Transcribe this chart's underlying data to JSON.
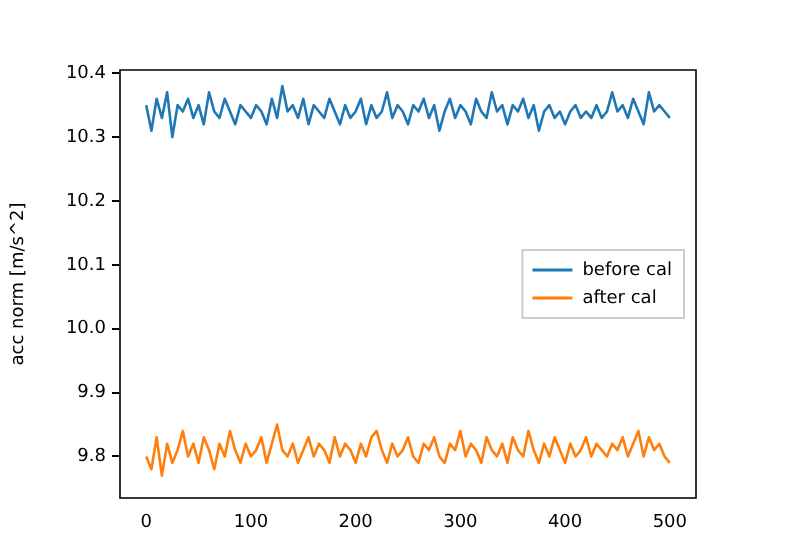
{
  "chart_data": {
    "type": "line",
    "ylabel": "acc norm [m/s^2]",
    "x": [
      0,
      5,
      10,
      15,
      20,
      25,
      30,
      35,
      40,
      45,
      50,
      55,
      60,
      65,
      70,
      75,
      80,
      85,
      90,
      95,
      100,
      105,
      110,
      115,
      120,
      125,
      130,
      135,
      140,
      145,
      150,
      155,
      160,
      165,
      170,
      175,
      180,
      185,
      190,
      195,
      200,
      205,
      210,
      215,
      220,
      225,
      230,
      235,
      240,
      245,
      250,
      255,
      260,
      265,
      270,
      275,
      280,
      285,
      290,
      295,
      300,
      305,
      310,
      315,
      320,
      325,
      330,
      335,
      340,
      345,
      350,
      355,
      360,
      365,
      370,
      375,
      380,
      385,
      390,
      395,
      400,
      405,
      410,
      415,
      420,
      425,
      430,
      435,
      440,
      445,
      450,
      455,
      460,
      465,
      470,
      475,
      480,
      485,
      490,
      495,
      500
    ],
    "series": [
      {
        "name": "before cal",
        "color": "#1f77b4",
        "values": [
          10.35,
          10.31,
          10.36,
          10.33,
          10.37,
          10.3,
          10.35,
          10.34,
          10.36,
          10.33,
          10.35,
          10.32,
          10.37,
          10.34,
          10.33,
          10.36,
          10.34,
          10.32,
          10.35,
          10.34,
          10.33,
          10.35,
          10.34,
          10.32,
          10.36,
          10.33,
          10.38,
          10.34,
          10.35,
          10.33,
          10.36,
          10.32,
          10.35,
          10.34,
          10.33,
          10.36,
          10.34,
          10.32,
          10.35,
          10.33,
          10.34,
          10.36,
          10.32,
          10.35,
          10.33,
          10.34,
          10.37,
          10.33,
          10.35,
          10.34,
          10.32,
          10.35,
          10.34,
          10.36,
          10.33,
          10.35,
          10.31,
          10.34,
          10.36,
          10.33,
          10.35,
          10.34,
          10.32,
          10.36,
          10.34,
          10.33,
          10.37,
          10.34,
          10.35,
          10.32,
          10.35,
          10.34,
          10.36,
          10.33,
          10.35,
          10.31,
          10.34,
          10.35,
          10.33,
          10.34,
          10.32,
          10.34,
          10.35,
          10.33,
          10.34,
          10.33,
          10.35,
          10.33,
          10.34,
          10.37,
          10.34,
          10.35,
          10.33,
          10.36,
          10.34,
          10.32,
          10.37,
          10.34,
          10.35,
          10.34,
          10.33
        ]
      },
      {
        "name": "after cal",
        "color": "#ff7f0e",
        "values": [
          9.8,
          9.78,
          9.83,
          9.77,
          9.82,
          9.79,
          9.81,
          9.84,
          9.8,
          9.82,
          9.79,
          9.83,
          9.81,
          9.78,
          9.82,
          9.8,
          9.84,
          9.81,
          9.79,
          9.82,
          9.8,
          9.81,
          9.83,
          9.79,
          9.82,
          9.85,
          9.81,
          9.8,
          9.82,
          9.79,
          9.81,
          9.83,
          9.8,
          9.82,
          9.81,
          9.79,
          9.83,
          9.8,
          9.82,
          9.81,
          9.79,
          9.82,
          9.8,
          9.83,
          9.84,
          9.81,
          9.79,
          9.82,
          9.8,
          9.81,
          9.83,
          9.8,
          9.79,
          9.82,
          9.81,
          9.83,
          9.8,
          9.79,
          9.82,
          9.81,
          9.84,
          9.8,
          9.82,
          9.81,
          9.79,
          9.83,
          9.81,
          9.8,
          9.82,
          9.79,
          9.83,
          9.81,
          9.8,
          9.84,
          9.81,
          9.79,
          9.82,
          9.8,
          9.83,
          9.81,
          9.79,
          9.82,
          9.8,
          9.81,
          9.83,
          9.8,
          9.82,
          9.81,
          9.8,
          9.82,
          9.81,
          9.83,
          9.8,
          9.82,
          9.84,
          9.8,
          9.83,
          9.81,
          9.82,
          9.8,
          9.79
        ]
      }
    ],
    "xlim": [
      -25,
      525
    ],
    "xticks": [
      0,
      100,
      200,
      300,
      400,
      500
    ],
    "ylim": [
      9.735,
      10.405
    ],
    "yticks": [
      9.8,
      9.9,
      {
        "value": 10,
        "label": "10.0"
      },
      10.1,
      10.2,
      10.3,
      10.4
    ],
    "legend": "center right",
    "marker": "none",
    "line_style": "solid"
  }
}
